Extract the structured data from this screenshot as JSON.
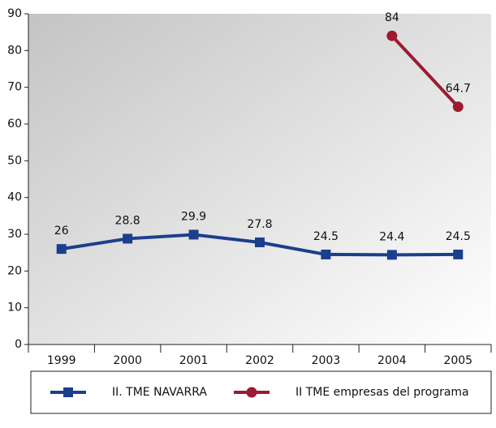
{
  "chart_data": {
    "type": "line",
    "categories": [
      "1999",
      "2000",
      "2001",
      "2002",
      "2003",
      "2004",
      "2005"
    ],
    "series": [
      {
        "name": "II. TME NAVARRA",
        "color": "#1c3f8c",
        "values": [
          26,
          28.8,
          29.9,
          27.8,
          24.5,
          24.4,
          24.5
        ]
      },
      {
        "name": "II TME empresas del programa",
        "color": "#9c1b30",
        "values": [
          null,
          null,
          null,
          null,
          null,
          84,
          64.7
        ]
      }
    ],
    "ylim": [
      0,
      90
    ],
    "yticks": [
      0,
      10,
      20,
      30,
      40,
      50,
      60,
      70,
      80,
      90
    ],
    "legend": "bottom"
  }
}
